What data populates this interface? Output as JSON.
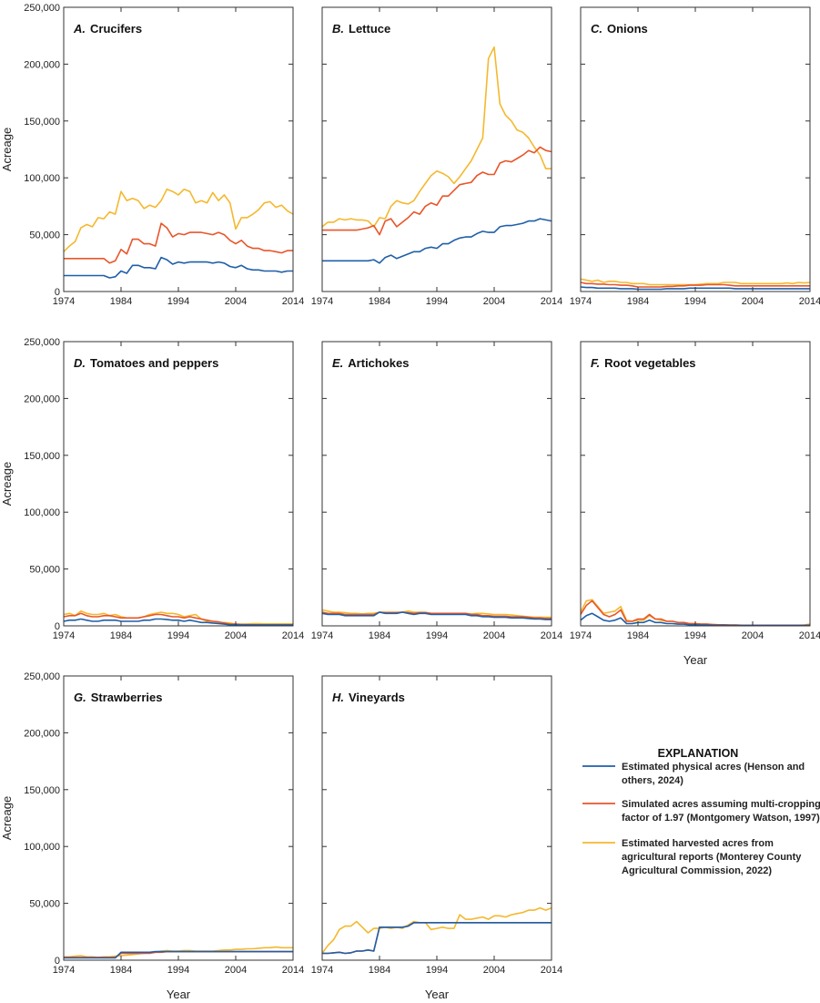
{
  "chart_data": {
    "type": "line",
    "ylabel": "Acreage",
    "xlabel": "Year",
    "xlim": [
      1974,
      2014
    ],
    "ylim": [
      0,
      250000
    ],
    "x_ticks": [
      "1974",
      "1984",
      "1994",
      "2004",
      "2014"
    ],
    "y_ticks": [
      "0",
      "50,000",
      "100,000",
      "150,000",
      "200,000",
      "250,000"
    ],
    "grid": false,
    "legend": {
      "title": "EXPLANATION",
      "placement": "bottom-right",
      "items": [
        {
          "key": "physical",
          "color": "#1f5fa8",
          "lines": [
            "Estimated physical acres (Henson and",
            "others, 2024)"
          ]
        },
        {
          "key": "simulated",
          "color": "#e8562a",
          "lines": [
            "Simulated acres assuming multi-cropping",
            "factor of 1.97 (Montgomery Watson, 1997)"
          ]
        },
        {
          "key": "harvested",
          "color": "#f5b82e",
          "lines": [
            "Estimated harvested acres from",
            "agricultural reports (Monterey County",
            "Agricultural Commission, 2022)"
          ]
        }
      ]
    },
    "years": [
      1974,
      1975,
      1976,
      1977,
      1978,
      1979,
      1980,
      1981,
      1982,
      1983,
      1984,
      1985,
      1986,
      1987,
      1988,
      1989,
      1990,
      1991,
      1992,
      1993,
      1994,
      1995,
      1996,
      1997,
      1998,
      1999,
      2000,
      2001,
      2002,
      2003,
      2004,
      2005,
      2006,
      2007,
      2008,
      2009,
      2010,
      2011,
      2012,
      2013,
      2014
    ],
    "panels": [
      {
        "label": "A.",
        "name": "Crucifers",
        "physical": [
          14000,
          14000,
          14000,
          14000,
          14000,
          14000,
          14000,
          14000,
          12000,
          13000,
          18000,
          16000,
          23000,
          23000,
          21000,
          21000,
          20000,
          30000,
          28000,
          24000,
          26000,
          25000,
          26000,
          26000,
          26000,
          26000,
          25000,
          26000,
          25000,
          22000,
          21000,
          23000,
          20000,
          19000,
          19000,
          18000,
          18000,
          18000,
          17000,
          18000,
          18000
        ],
        "simulated": [
          29000,
          29000,
          29000,
          29000,
          29000,
          29000,
          29000,
          29000,
          25000,
          27000,
          37000,
          33000,
          46000,
          46000,
          42000,
          42000,
          40000,
          60000,
          56000,
          48000,
          51000,
          50000,
          52000,
          52000,
          52000,
          51000,
          50000,
          52000,
          50000,
          45000,
          42000,
          45000,
          40000,
          38000,
          38000,
          36000,
          36000,
          35000,
          34000,
          36000,
          36000
        ],
        "harvested": [
          35000,
          40000,
          44000,
          56000,
          59000,
          57000,
          65000,
          64000,
          70000,
          68000,
          88000,
          80000,
          82000,
          80000,
          73000,
          76000,
          74000,
          80000,
          90000,
          88000,
          85000,
          90000,
          88000,
          78000,
          80000,
          78000,
          87000,
          80000,
          85000,
          78000,
          55000,
          65000,
          65000,
          68000,
          72000,
          78000,
          79000,
          74000,
          76000,
          71000,
          68000
        ]
      },
      {
        "label": "B.",
        "name": "Lettuce",
        "physical": [
          27000,
          27000,
          27000,
          27000,
          27000,
          27000,
          27000,
          27000,
          27000,
          28000,
          25000,
          30000,
          32000,
          29000,
          31000,
          33000,
          35000,
          35000,
          38000,
          39000,
          38000,
          42000,
          42000,
          45000,
          47000,
          48000,
          48000,
          51000,
          53000,
          52000,
          52000,
          57000,
          58000,
          58000,
          59000,
          60000,
          62000,
          62000,
          64000,
          63000,
          62000
        ],
        "simulated": [
          54000,
          54000,
          54000,
          54000,
          54000,
          54000,
          54000,
          55000,
          56000,
          58000,
          50000,
          62000,
          64000,
          57000,
          61000,
          65000,
          70000,
          68000,
          75000,
          78000,
          76000,
          84000,
          84000,
          89000,
          94000,
          95000,
          96000,
          102000,
          105000,
          103000,
          103000,
          113000,
          115000,
          114000,
          117000,
          120000,
          124000,
          122000,
          127000,
          124000,
          123000
        ],
        "harvested": [
          57000,
          61000,
          61000,
          64000,
          63000,
          64000,
          63000,
          63000,
          62000,
          57000,
          65000,
          64000,
          75000,
          80000,
          78000,
          77000,
          80000,
          88000,
          95000,
          102000,
          106000,
          104000,
          101000,
          95000,
          101000,
          108000,
          115000,
          125000,
          135000,
          205000,
          215000,
          165000,
          155000,
          150000,
          142000,
          140000,
          135000,
          127000,
          120000,
          108000,
          108000
        ]
      },
      {
        "label": "C.",
        "name": "Onions",
        "physical": [
          4000,
          3500,
          3500,
          3000,
          3000,
          3000,
          3000,
          2500,
          2500,
          2500,
          2000,
          2000,
          2000,
          2000,
          2000,
          2500,
          2500,
          2500,
          2500,
          3000,
          3000,
          3000,
          3000,
          3000,
          3000,
          3000,
          3000,
          2500,
          2500,
          2500,
          2500,
          2500,
          2500,
          2500,
          2500,
          2500,
          2500,
          2500,
          2500,
          2500,
          2500
        ],
        "simulated": [
          8000,
          7000,
          7000,
          6500,
          6500,
          6000,
          6000,
          5500,
          5500,
          5000,
          4000,
          4000,
          4000,
          4000,
          4000,
          4500,
          4500,
          5000,
          5000,
          5500,
          5500,
          5500,
          6000,
          6000,
          6000,
          6000,
          5500,
          5000,
          5000,
          5000,
          5000,
          5000,
          5000,
          5000,
          5000,
          5000,
          5000,
          5000,
          5000,
          5000,
          5000
        ],
        "harvested": [
          11000,
          10000,
          9000,
          10000,
          8000,
          9000,
          9000,
          8000,
          8000,
          7000,
          7000,
          7000,
          6000,
          6000,
          6000,
          6000,
          6000,
          6000,
          6000,
          6000,
          6000,
          6500,
          7000,
          7000,
          7000,
          8000,
          8000,
          8000,
          7000,
          7000,
          7000,
          7000,
          7000,
          7000,
          7000,
          7000,
          7500,
          7000,
          8000,
          7500,
          8000
        ]
      },
      {
        "label": "D.",
        "name": "Tomatoes and peppers",
        "physical": [
          4000,
          5000,
          5000,
          6000,
          5000,
          4000,
          4000,
          5000,
          5000,
          5000,
          4000,
          4000,
          4000,
          4000,
          5000,
          5000,
          6000,
          6000,
          5500,
          5000,
          5000,
          4000,
          5000,
          4000,
          3000,
          3000,
          2500,
          2000,
          1500,
          1000,
          1000,
          800,
          800,
          700,
          700,
          700,
          700,
          700,
          700,
          700,
          700
        ],
        "simulated": [
          8000,
          9000,
          9000,
          11000,
          9000,
          8000,
          8000,
          9000,
          9000,
          8000,
          7000,
          7000,
          7000,
          7000,
          8000,
          9000,
          10000,
          10000,
          9000,
          8000,
          8000,
          7000,
          8000,
          7000,
          6000,
          5000,
          4000,
          3500,
          2500,
          1500,
          1500,
          1200,
          1200,
          1000,
          1000,
          1000,
          1000,
          1000,
          1000,
          1000,
          1000
        ],
        "harvested": [
          10000,
          11000,
          9000,
          13000,
          11000,
          10000,
          10000,
          11000,
          9000,
          10000,
          8000,
          7000,
          7000,
          7000,
          8000,
          10000,
          11000,
          12000,
          11000,
          11000,
          10000,
          8000,
          9000,
          10000,
          6000,
          4000,
          4000,
          3000,
          3000,
          2500,
          1500,
          1500,
          1500,
          2000,
          2000,
          1800,
          1800,
          1800,
          1800,
          1800,
          1800
        ]
      },
      {
        "label": "E.",
        "name": "Artichokes",
        "physical": [
          11000,
          10000,
          10000,
          10000,
          9000,
          9000,
          9000,
          9000,
          9000,
          9000,
          12000,
          11000,
          11000,
          11000,
          12000,
          11000,
          10000,
          11000,
          11000,
          10000,
          10000,
          10000,
          10000,
          10000,
          10000,
          10000,
          9000,
          9000,
          8000,
          8000,
          7500,
          7500,
          7500,
          7000,
          7000,
          7000,
          6500,
          6000,
          6000,
          5500,
          5500
        ],
        "simulated": [
          12000,
          11000,
          11000,
          11000,
          10000,
          10000,
          10000,
          10000,
          10000,
          10000,
          12000,
          11500,
          11500,
          11500,
          12000,
          11500,
          11000,
          11500,
          11500,
          11000,
          11000,
          11000,
          11000,
          11000,
          11000,
          11000,
          10000,
          10000,
          9000,
          9000,
          8500,
          8500,
          8500,
          8000,
          8000,
          8000,
          7500,
          7000,
          7000,
          6500,
          6500
        ],
        "harvested": [
          14000,
          13000,
          12000,
          12000,
          11500,
          11000,
          11000,
          10500,
          11000,
          11000,
          12000,
          12000,
          12000,
          12000,
          12000,
          13000,
          12000,
          12000,
          12000,
          11000,
          11000,
          11000,
          10500,
          11000,
          11000,
          11000,
          10500,
          11000,
          11000,
          10500,
          10000,
          10000,
          10000,
          9500,
          9000,
          8500,
          8000,
          7500,
          7500,
          7500,
          7500
        ]
      },
      {
        "label": "F.",
        "name": "Root vegetables",
        "physical": [
          5000,
          9000,
          11000,
          8000,
          5000,
          4000,
          5000,
          7000,
          2000,
          2000,
          3000,
          3000,
          5000,
          3000,
          3000,
          2000,
          2000,
          1500,
          1500,
          1000,
          1000,
          800,
          800,
          600,
          500,
          500,
          400,
          400,
          300,
          300,
          300,
          300,
          300,
          300,
          300,
          300,
          300,
          300,
          300,
          300,
          400
        ],
        "simulated": [
          10000,
          18000,
          22000,
          16000,
          10000,
          8000,
          10000,
          14000,
          4000,
          4000,
          6000,
          6000,
          10000,
          6000,
          6000,
          4000,
          4000,
          3000,
          3000,
          2000,
          2000,
          1500,
          1500,
          1200,
          1000,
          1000,
          800,
          800,
          600,
          600,
          600,
          600,
          600,
          600,
          600,
          600,
          600,
          600,
          600,
          600,
          800
        ],
        "harvested": [
          12000,
          22000,
          23000,
          17000,
          11000,
          12000,
          13000,
          17000,
          5000,
          4000,
          5000,
          5000,
          9000,
          6000,
          5000,
          4000,
          4000,
          3000,
          3000,
          2000,
          2000,
          1500,
          1500,
          1200,
          1000,
          1000,
          800,
          800,
          600,
          600,
          600,
          600,
          600,
          600,
          600,
          600,
          600,
          600,
          600,
          800,
          1500
        ]
      },
      {
        "label": "G.",
        "name": "Strawberries",
        "physical": [
          2000,
          2000,
          2000,
          2000,
          2000,
          2000,
          2000,
          2000,
          2000,
          2000,
          7000,
          7000,
          7000,
          7000,
          7000,
          7000,
          7500,
          7500,
          7500,
          7500,
          7500,
          7500,
          7500,
          7500,
          7500,
          7500,
          7500,
          7500,
          7500,
          7500,
          7500,
          7500,
          7500,
          7500,
          7500,
          7500,
          7500,
          7500,
          7500,
          7500,
          7500
        ],
        "simulated": [
          2500,
          2500,
          2500,
          2500,
          2500,
          2500,
          2500,
          2500,
          2500,
          2500,
          6000,
          6000,
          6000,
          6000,
          6000,
          6000,
          7000,
          7000,
          7500,
          7500,
          7500,
          7500,
          7500,
          7500,
          7500,
          7500,
          7500,
          7500,
          7500,
          7500,
          7500,
          7500,
          7500,
          7500,
          7500,
          7500,
          7500,
          7500,
          7500,
          7500,
          7500
        ],
        "harvested": [
          3000,
          3000,
          3500,
          4000,
          3000,
          3000,
          2500,
          3000,
          3000,
          3500,
          4000,
          4500,
          5000,
          5500,
          6000,
          6500,
          7000,
          8000,
          8500,
          8000,
          8000,
          8500,
          8500,
          8000,
          8000,
          8000,
          8000,
          8500,
          9000,
          9000,
          9500,
          9500,
          10000,
          10000,
          10500,
          11000,
          11000,
          11500,
          11000,
          11000,
          11000
        ]
      },
      {
        "label": "H.",
        "name": "Vineyards",
        "physical": [
          6000,
          6000,
          6500,
          7000,
          6000,
          6500,
          8000,
          8000,
          9000,
          8000,
          29000,
          29000,
          29000,
          29000,
          29000,
          30000,
          33000,
          33000,
          33000,
          33000,
          33000,
          33000,
          33000,
          33000,
          33000,
          33000,
          33000,
          33000,
          33000,
          33000,
          33000,
          33000,
          33000,
          33000,
          33000,
          33000,
          33000,
          33000,
          33000,
          33000,
          33000
        ],
        "simulated": [
          6000,
          6000,
          6500,
          7000,
          6000,
          6500,
          8000,
          8000,
          9000,
          8000,
          29000,
          29000,
          29000,
          29000,
          29000,
          30000,
          33000,
          33000,
          33000,
          33000,
          33000,
          33000,
          33000,
          33000,
          33000,
          33000,
          33000,
          33000,
          33000,
          33000,
          33000,
          33000,
          33000,
          33000,
          33000,
          33000,
          33000,
          33000,
          33000,
          33000,
          33000
        ],
        "harvested": [
          6000,
          13000,
          18000,
          27000,
          30000,
          30000,
          34000,
          29000,
          24000,
          28000,
          28000,
          29000,
          28000,
          29000,
          28000,
          31000,
          34000,
          33000,
          33000,
          27000,
          28000,
          29000,
          28000,
          28000,
          40000,
          36000,
          36000,
          37000,
          38000,
          36000,
          39000,
          39000,
          38000,
          40000,
          41000,
          42000,
          44000,
          44000,
          46000,
          44000,
          46000
        ]
      }
    ]
  }
}
